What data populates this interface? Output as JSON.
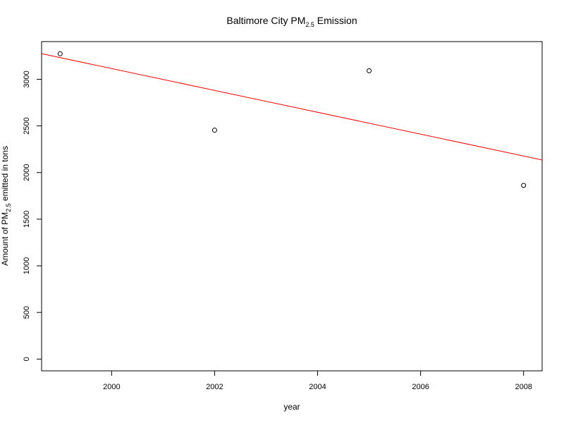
{
  "chart_data": {
    "type": "scatter",
    "title": {
      "prefix": "Baltimore City PM",
      "subscript": "2.5",
      "suffix": " Emission"
    },
    "xlabel": "year",
    "ylabel": {
      "prefix": "Amount of PM",
      "subscript": "2.5",
      "suffix": " emitted in tons"
    },
    "xlim": [
      1998.64,
      2008.36
    ],
    "ylim": [
      -126,
      3404
    ],
    "x_ticks": [
      2000,
      2002,
      2004,
      2006,
      2008
    ],
    "x_tick_labels": [
      "2000",
      "2002",
      "2004",
      "2006",
      "2008"
    ],
    "y_ticks": [
      0,
      500,
      1000,
      1500,
      2000,
      2500,
      3000
    ],
    "y_tick_labels": [
      "0",
      "500",
      "1000",
      "1500",
      "2000",
      "2500",
      "3000"
    ],
    "points": [
      {
        "x": 1999,
        "y": 3274
      },
      {
        "x": 2002,
        "y": 2454
      },
      {
        "x": 2005,
        "y": 3091
      },
      {
        "x": 2008,
        "y": 1862
      }
    ],
    "trend_line": {
      "type": "linear-regression",
      "color": "#ff0000",
      "intercept_at_1999": 3232,
      "slope_per_year": -117.2
    },
    "point_color": "#000000",
    "grid": false
  }
}
